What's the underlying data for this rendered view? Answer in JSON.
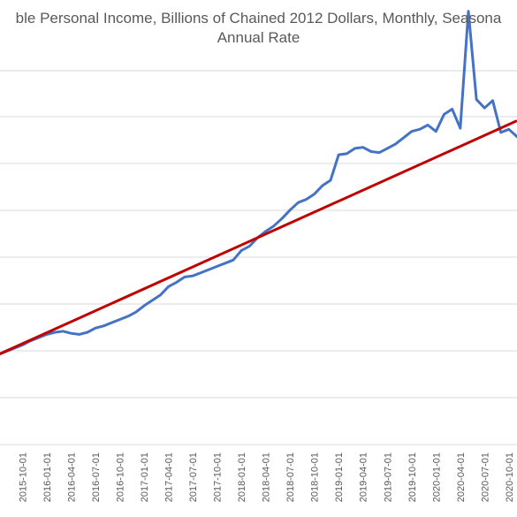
{
  "chart_data": {
    "type": "line",
    "title": "ble Personal Income, Billions of Chained 2012 Dollars, Monthly, Seasona\nAnnual Rate",
    "xlabel": "",
    "ylabel": "",
    "y_tick_labels_visible": false,
    "grid": "horizontal",
    "gridline_count": 9,
    "x_tick_labels": [
      "2015-10-01",
      "2016-01-01",
      "2016-04-01",
      "2016-07-01",
      "2016-10-01",
      "2017-01-01",
      "2017-04-01",
      "2017-07-01",
      "2017-10-01",
      "2018-01-01",
      "2018-04-01",
      "2018-07-01",
      "2018-10-01",
      "2019-01-01",
      "2019-04-01",
      "2019-07-01",
      "2019-10-01",
      "2020-01-01",
      "2020-04-01",
      "2020-07-01",
      "2020-10-01"
    ],
    "x": [
      "2015-07-01",
      "2015-08-01",
      "2015-09-01",
      "2015-10-01",
      "2015-11-01",
      "2015-12-01",
      "2016-01-01",
      "2016-02-01",
      "2016-03-01",
      "2016-04-01",
      "2016-05-01",
      "2016-06-01",
      "2016-07-01",
      "2016-08-01",
      "2016-09-01",
      "2016-10-01",
      "2016-11-01",
      "2016-12-01",
      "2017-01-01",
      "2017-02-01",
      "2017-03-01",
      "2017-04-01",
      "2017-05-01",
      "2017-06-01",
      "2017-07-01",
      "2017-08-01",
      "2017-09-01",
      "2017-10-01",
      "2017-11-01",
      "2017-12-01",
      "2018-01-01",
      "2018-02-01",
      "2018-03-01",
      "2018-04-01",
      "2018-05-01",
      "2018-06-01",
      "2018-07-01",
      "2018-08-01",
      "2018-09-01",
      "2018-10-01",
      "2018-11-01",
      "2018-12-01",
      "2019-01-01",
      "2019-02-01",
      "2019-03-01",
      "2019-04-01",
      "2019-05-01",
      "2019-06-01",
      "2019-07-01",
      "2019-08-01",
      "2019-09-01",
      "2019-10-01",
      "2019-11-01",
      "2019-12-01",
      "2020-01-01",
      "2020-02-01",
      "2020-03-01",
      "2020-04-01",
      "2020-05-01",
      "2020-06-01",
      "2020-07-01",
      "2020-08-01",
      "2020-09-01",
      "2020-10-01",
      "2020-11-01"
    ],
    "series": [
      {
        "type": "line",
        "color": "#4472C4",
        "values": [
          1.4,
          1.55,
          1.7,
          1.85,
          2.05,
          2.2,
          2.35,
          2.45,
          2.5,
          2.4,
          2.35,
          2.45,
          2.65,
          2.75,
          2.9,
          3.05,
          3.2,
          3.4,
          3.7,
          3.95,
          4.2,
          4.6,
          4.8,
          5.05,
          5.1,
          5.25,
          5.4,
          5.55,
          5.7,
          5.85,
          6.3,
          6.5,
          6.9,
          7.2,
          7.45,
          7.8,
          8.2,
          8.55,
          8.7,
          8.95,
          9.35,
          9.6,
          10.8,
          10.85,
          11.1,
          11.15,
          10.95,
          10.9,
          11.1,
          11.3,
          11.6,
          11.9,
          12.0,
          12.2,
          11.9,
          12.7,
          12.95,
          12.05,
          17.55,
          13.4,
          13.0,
          13.35,
          11.85,
          12.0,
          11.65
        ]
      },
      {
        "type": "trend",
        "color": "#C00000",
        "from": {
          "x": "2015-07-01",
          "y": 1.4
        },
        "to": {
          "x": "2020-11-01",
          "y": 12.4
        }
      }
    ],
    "ylim": [
      -2,
      17
    ]
  }
}
